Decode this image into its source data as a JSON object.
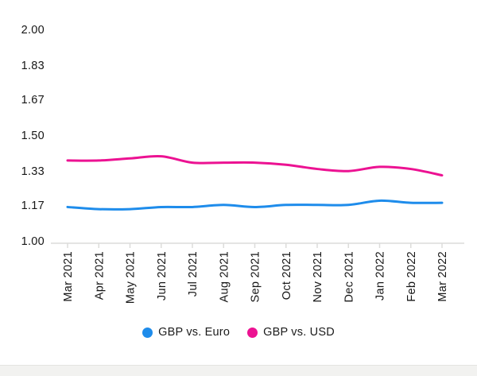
{
  "chart_data": {
    "type": "line",
    "title": "",
    "xlabel": "",
    "ylabel": "",
    "categories": [
      "Mar 2021",
      "Apr 2021",
      "May 2021",
      "Jun 2021",
      "Jul 2021",
      "Aug 2021",
      "Sep 2021",
      "Oct 2021",
      "Nov 2021",
      "Dec 2021",
      "Jan 2022",
      "Feb 2022",
      "Mar 2022"
    ],
    "series": [
      {
        "name": "GBP vs. Euro",
        "color": "#1e8ceb",
        "values": [
          1.16,
          1.15,
          1.15,
          1.16,
          1.16,
          1.17,
          1.16,
          1.17,
          1.17,
          1.17,
          1.19,
          1.18,
          1.18
        ]
      },
      {
        "name": "GBP vs. USD",
        "color": "#ec1292",
        "values": [
          1.38,
          1.38,
          1.39,
          1.4,
          1.37,
          1.37,
          1.37,
          1.36,
          1.34,
          1.33,
          1.35,
          1.34,
          1.31
        ]
      }
    ],
    "y_ticks": [
      "2.00",
      "1.83",
      "1.67",
      "1.50",
      "1.33",
      "1.17",
      "1.00"
    ],
    "ylim": [
      1.0,
      2.0
    ],
    "grid": false,
    "legend_position": "bottom",
    "axis_color": "#dcdcda",
    "tick_label_color": "#161616"
  }
}
